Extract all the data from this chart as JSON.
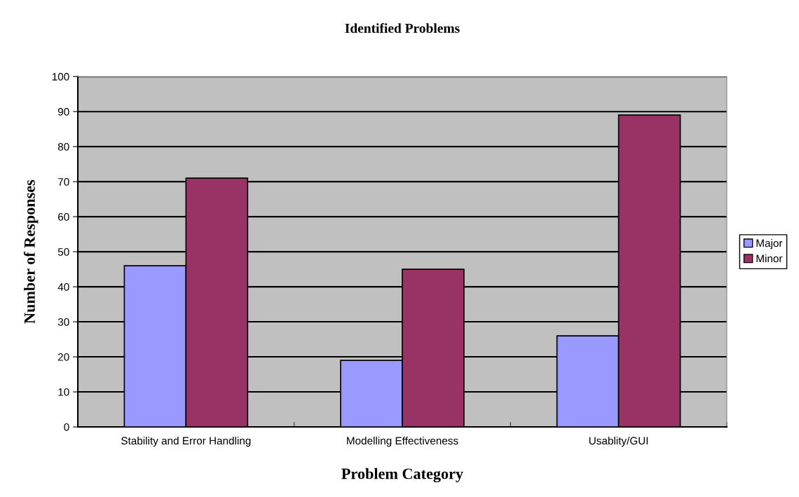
{
  "chart_data": {
    "type": "bar",
    "title": "Identified Problems",
    "xlabel": "Problem Category",
    "ylabel": "Number of Responses",
    "categories": [
      "Stability and Error Handling",
      "Modelling Effectiveness",
      "Usablity/GUI"
    ],
    "series": [
      {
        "name": "Major",
        "color": "#9999ff",
        "values": [
          46,
          19,
          26
        ]
      },
      {
        "name": "Minor",
        "color": "#993366",
        "values": [
          71,
          45,
          89
        ]
      }
    ],
    "ylim": [
      0,
      100
    ],
    "yticks": [
      0,
      10,
      20,
      30,
      40,
      50,
      60,
      70,
      80,
      90,
      100
    ],
    "grid": "y",
    "legend": "right"
  }
}
